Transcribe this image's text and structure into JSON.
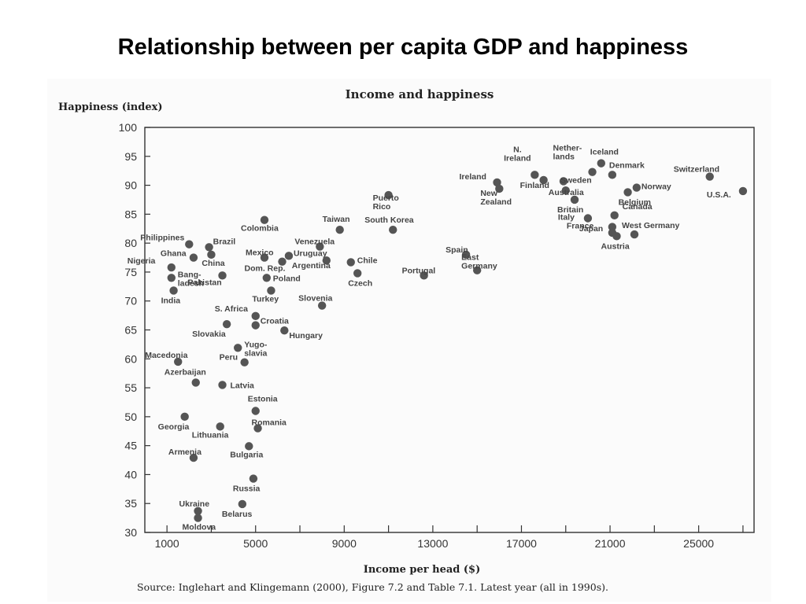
{
  "slide_title": "Relationship between per capita GDP and happiness",
  "source": "Source: Inglehart and Klingemann (2000), Figure 7.2 and Table 7.1. Latest year (all in 1990s).",
  "chart_data": {
    "type": "scatter",
    "title": "Income and happiness",
    "xlabel": "Income per head ($)",
    "ylabel": "Happiness (index)",
    "xlim": [
      0,
      27500
    ],
    "ylim": [
      30,
      100
    ],
    "xticks": [
      1000,
      5000,
      9000,
      13000,
      17000,
      21000,
      25000
    ],
    "xticks_minor": [
      3000,
      7000,
      11000,
      15000,
      19000,
      23000,
      27000
    ],
    "yticks": [
      30,
      35,
      40,
      45,
      50,
      55,
      60,
      65,
      70,
      75,
      80,
      85,
      90,
      95,
      100
    ],
    "grid": false,
    "points": [
      {
        "label": "Iceland",
        "x": 20600,
        "y": 93.8
      },
      {
        "label": "N. Ireland",
        "x": 17600,
        "y": 91.8
      },
      {
        "label": "Nether-lands",
        "x": 20200,
        "y": 92.3
      },
      {
        "label": "Denmark",
        "x": 21100,
        "y": 91.8
      },
      {
        "label": "Switzerland",
        "x": 25500,
        "y": 91.5
      },
      {
        "label": "Ireland",
        "x": 15900,
        "y": 90.5
      },
      {
        "label": "Finland",
        "x": 18000,
        "y": 90.9
      },
      {
        "label": "Sweden",
        "x": 18900,
        "y": 90.7
      },
      {
        "label": "Norway",
        "x": 22200,
        "y": 89.6
      },
      {
        "label": "U.S.A.",
        "x": 27000,
        "y": 89.0
      },
      {
        "label": "Australia",
        "x": 19000,
        "y": 89.1
      },
      {
        "label": "New Zealand",
        "x": 16000,
        "y": 89.4
      },
      {
        "label": "Belgium",
        "x": 21800,
        "y": 88.8
      },
      {
        "label": "Britain",
        "x": 19400,
        "y": 87.5
      },
      {
        "label": "Puerto Rico",
        "x": 11000,
        "y": 88.3
      },
      {
        "label": "Canada",
        "x": 21200,
        "y": 84.8
      },
      {
        "label": "Italy",
        "x": 20000,
        "y": 84.3
      },
      {
        "label": "France",
        "x": 21100,
        "y": 82.8
      },
      {
        "label": "Japan",
        "x": 21100,
        "y": 81.8
      },
      {
        "label": "West Germany",
        "x": 22100,
        "y": 81.5
      },
      {
        "label": "Austria",
        "x": 21300,
        "y": 81.2
      },
      {
        "label": "Colombia",
        "x": 5400,
        "y": 84.0
      },
      {
        "label": "Taiwan",
        "x": 8800,
        "y": 82.3
      },
      {
        "label": "South Korea",
        "x": 11200,
        "y": 82.3
      },
      {
        "label": "Philippines",
        "x": 2000,
        "y": 79.8
      },
      {
        "label": "Brazil",
        "x": 2900,
        "y": 79.3
      },
      {
        "label": "Venezuela",
        "x": 7900,
        "y": 79.4
      },
      {
        "label": "Spain",
        "x": 14500,
        "y": 78.0
      },
      {
        "label": "Ghana",
        "x": 2200,
        "y": 77.5
      },
      {
        "label": "China",
        "x": 3000,
        "y": 78.0
      },
      {
        "label": "Mexico",
        "x": 5400,
        "y": 77.5
      },
      {
        "label": "Uruguay",
        "x": 6500,
        "y": 77.8
      },
      {
        "label": "Dom. Rep.",
        "x": 6200,
        "y": 76.8
      },
      {
        "label": "Argentina",
        "x": 8200,
        "y": 77.0
      },
      {
        "label": "Chile",
        "x": 9300,
        "y": 76.7
      },
      {
        "label": "East Germany",
        "x": 15000,
        "y": 75.3
      },
      {
        "label": "Nigeria",
        "x": 1200,
        "y": 75.8
      },
      {
        "label": "Portugal",
        "x": 12600,
        "y": 74.4
      },
      {
        "label": "Czech",
        "x": 9600,
        "y": 74.8
      },
      {
        "label": "Bang-ladesh",
        "x": 1200,
        "y": 74.0
      },
      {
        "label": "Pakistan",
        "x": 3500,
        "y": 74.4
      },
      {
        "label": "Poland",
        "x": 5500,
        "y": 74.0
      },
      {
        "label": "India",
        "x": 1300,
        "y": 71.8
      },
      {
        "label": "Turkey",
        "x": 5700,
        "y": 71.8
      },
      {
        "label": "Slovenia",
        "x": 8000,
        "y": 69.2
      },
      {
        "label": "S. Africa",
        "x": 5000,
        "y": 67.4
      },
      {
        "label": "Slovakia",
        "x": 3700,
        "y": 66.0
      },
      {
        "label": "Croatia",
        "x": 5000,
        "y": 65.8
      },
      {
        "label": "Hungary",
        "x": 6300,
        "y": 64.9
      },
      {
        "label": "Yugo-slavia",
        "x": 4200,
        "y": 61.9
      },
      {
        "label": "Macedonia",
        "x": 1500,
        "y": 59.5
      },
      {
        "label": "Peru",
        "x": 4500,
        "y": 59.4
      },
      {
        "label": "Azerbaijan",
        "x": 2300,
        "y": 55.9
      },
      {
        "label": "Latvia",
        "x": 3500,
        "y": 55.5
      },
      {
        "label": "Estonia",
        "x": 5000,
        "y": 51.0
      },
      {
        "label": "Georgia",
        "x": 1800,
        "y": 50.0
      },
      {
        "label": "Lithuania",
        "x": 3400,
        "y": 48.3
      },
      {
        "label": "Romania",
        "x": 5100,
        "y": 48.0
      },
      {
        "label": "Armenia",
        "x": 2200,
        "y": 42.9
      },
      {
        "label": "Bulgaria",
        "x": 4700,
        "y": 44.9
      },
      {
        "label": "Russia",
        "x": 4900,
        "y": 39.3
      },
      {
        "label": "Ukraine",
        "x": 2400,
        "y": 33.7
      },
      {
        "label": "Belarus",
        "x": 4400,
        "y": 34.9
      },
      {
        "label": "Moldova",
        "x": 2400,
        "y": 32.5
      }
    ]
  }
}
